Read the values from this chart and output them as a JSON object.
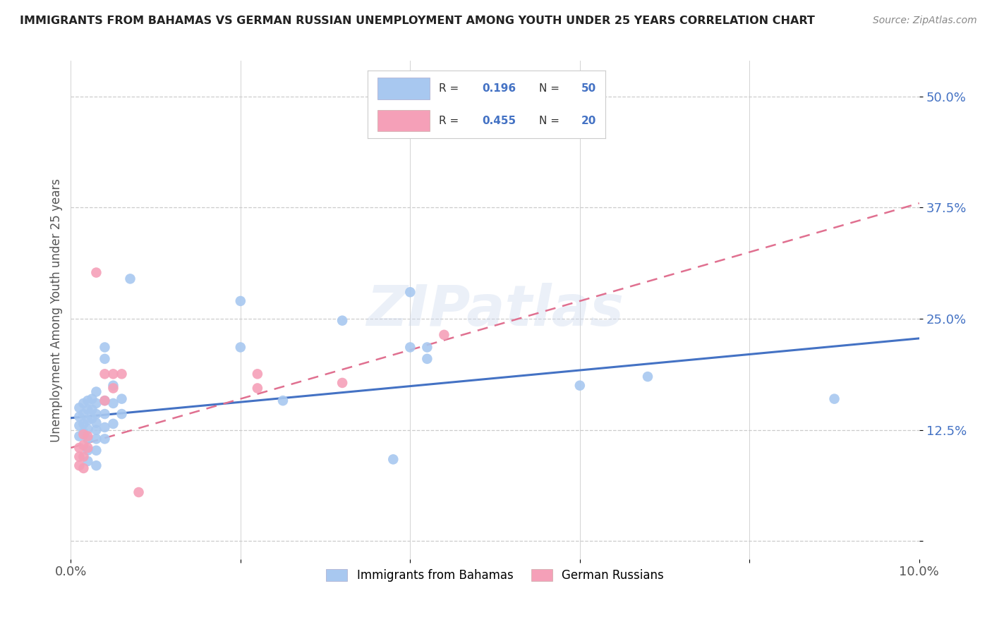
{
  "title": "IMMIGRANTS FROM BAHAMAS VS GERMAN RUSSIAN UNEMPLOYMENT AMONG YOUTH UNDER 25 YEARS CORRELATION CHART",
  "source": "Source: ZipAtlas.com",
  "ylabel": "Unemployment Among Youth under 25 years",
  "xlim": [
    0.0,
    0.1
  ],
  "ylim": [
    -0.02,
    0.54
  ],
  "yticks": [
    0.0,
    0.125,
    0.25,
    0.375,
    0.5
  ],
  "yticklabels": [
    "",
    "12.5%",
    "25.0%",
    "37.5%",
    "50.0%"
  ],
  "xtick_vals": [
    0.0,
    0.02,
    0.04,
    0.06,
    0.08,
    0.1
  ],
  "xticklabels": [
    "0.0%",
    "",
    "",
    "",
    "",
    "10.0%"
  ],
  "legend_label1": "Immigrants from Bahamas",
  "legend_label2": "German Russians",
  "R1": "0.196",
  "N1": "50",
  "R2": "0.455",
  "N2": "20",
  "color1": "#a8c8f0",
  "color2": "#f5a0b8",
  "line_color1": "#4472c4",
  "line_color2": "#e07090",
  "watermark": "ZIPatlas",
  "blue_points": [
    [
      0.001,
      0.15
    ],
    [
      0.001,
      0.14
    ],
    [
      0.001,
      0.13
    ],
    [
      0.001,
      0.118
    ],
    [
      0.0015,
      0.155
    ],
    [
      0.0015,
      0.143
    ],
    [
      0.0015,
      0.132
    ],
    [
      0.0015,
      0.122
    ],
    [
      0.002,
      0.158
    ],
    [
      0.002,
      0.148
    ],
    [
      0.002,
      0.136
    ],
    [
      0.002,
      0.126
    ],
    [
      0.002,
      0.115
    ],
    [
      0.002,
      0.102
    ],
    [
      0.002,
      0.09
    ],
    [
      0.0025,
      0.16
    ],
    [
      0.0025,
      0.148
    ],
    [
      0.0025,
      0.138
    ],
    [
      0.003,
      0.168
    ],
    [
      0.003,
      0.155
    ],
    [
      0.003,
      0.143
    ],
    [
      0.003,
      0.133
    ],
    [
      0.003,
      0.125
    ],
    [
      0.003,
      0.115
    ],
    [
      0.003,
      0.102
    ],
    [
      0.003,
      0.085
    ],
    [
      0.004,
      0.218
    ],
    [
      0.004,
      0.205
    ],
    [
      0.004,
      0.158
    ],
    [
      0.004,
      0.143
    ],
    [
      0.004,
      0.128
    ],
    [
      0.004,
      0.115
    ],
    [
      0.005,
      0.175
    ],
    [
      0.005,
      0.155
    ],
    [
      0.005,
      0.132
    ],
    [
      0.006,
      0.16
    ],
    [
      0.006,
      0.143
    ],
    [
      0.007,
      0.295
    ],
    [
      0.02,
      0.27
    ],
    [
      0.02,
      0.218
    ],
    [
      0.025,
      0.158
    ],
    [
      0.032,
      0.248
    ],
    [
      0.038,
      0.092
    ],
    [
      0.04,
      0.28
    ],
    [
      0.04,
      0.218
    ],
    [
      0.042,
      0.218
    ],
    [
      0.042,
      0.205
    ],
    [
      0.06,
      0.175
    ],
    [
      0.068,
      0.185
    ],
    [
      0.09,
      0.16
    ]
  ],
  "pink_points": [
    [
      0.001,
      0.105
    ],
    [
      0.001,
      0.095
    ],
    [
      0.001,
      0.085
    ],
    [
      0.0015,
      0.12
    ],
    [
      0.0015,
      0.108
    ],
    [
      0.0015,
      0.095
    ],
    [
      0.0015,
      0.082
    ],
    [
      0.002,
      0.118
    ],
    [
      0.002,
      0.105
    ],
    [
      0.003,
      0.302
    ],
    [
      0.004,
      0.188
    ],
    [
      0.004,
      0.158
    ],
    [
      0.005,
      0.188
    ],
    [
      0.005,
      0.172
    ],
    [
      0.006,
      0.188
    ],
    [
      0.008,
      0.055
    ],
    [
      0.022,
      0.188
    ],
    [
      0.022,
      0.172
    ],
    [
      0.032,
      0.178
    ],
    [
      0.044,
      0.232
    ]
  ],
  "blue_line": [
    0.0,
    0.1385,
    0.1,
    0.228
  ],
  "pink_line": [
    0.0,
    0.105,
    0.1,
    0.38
  ]
}
